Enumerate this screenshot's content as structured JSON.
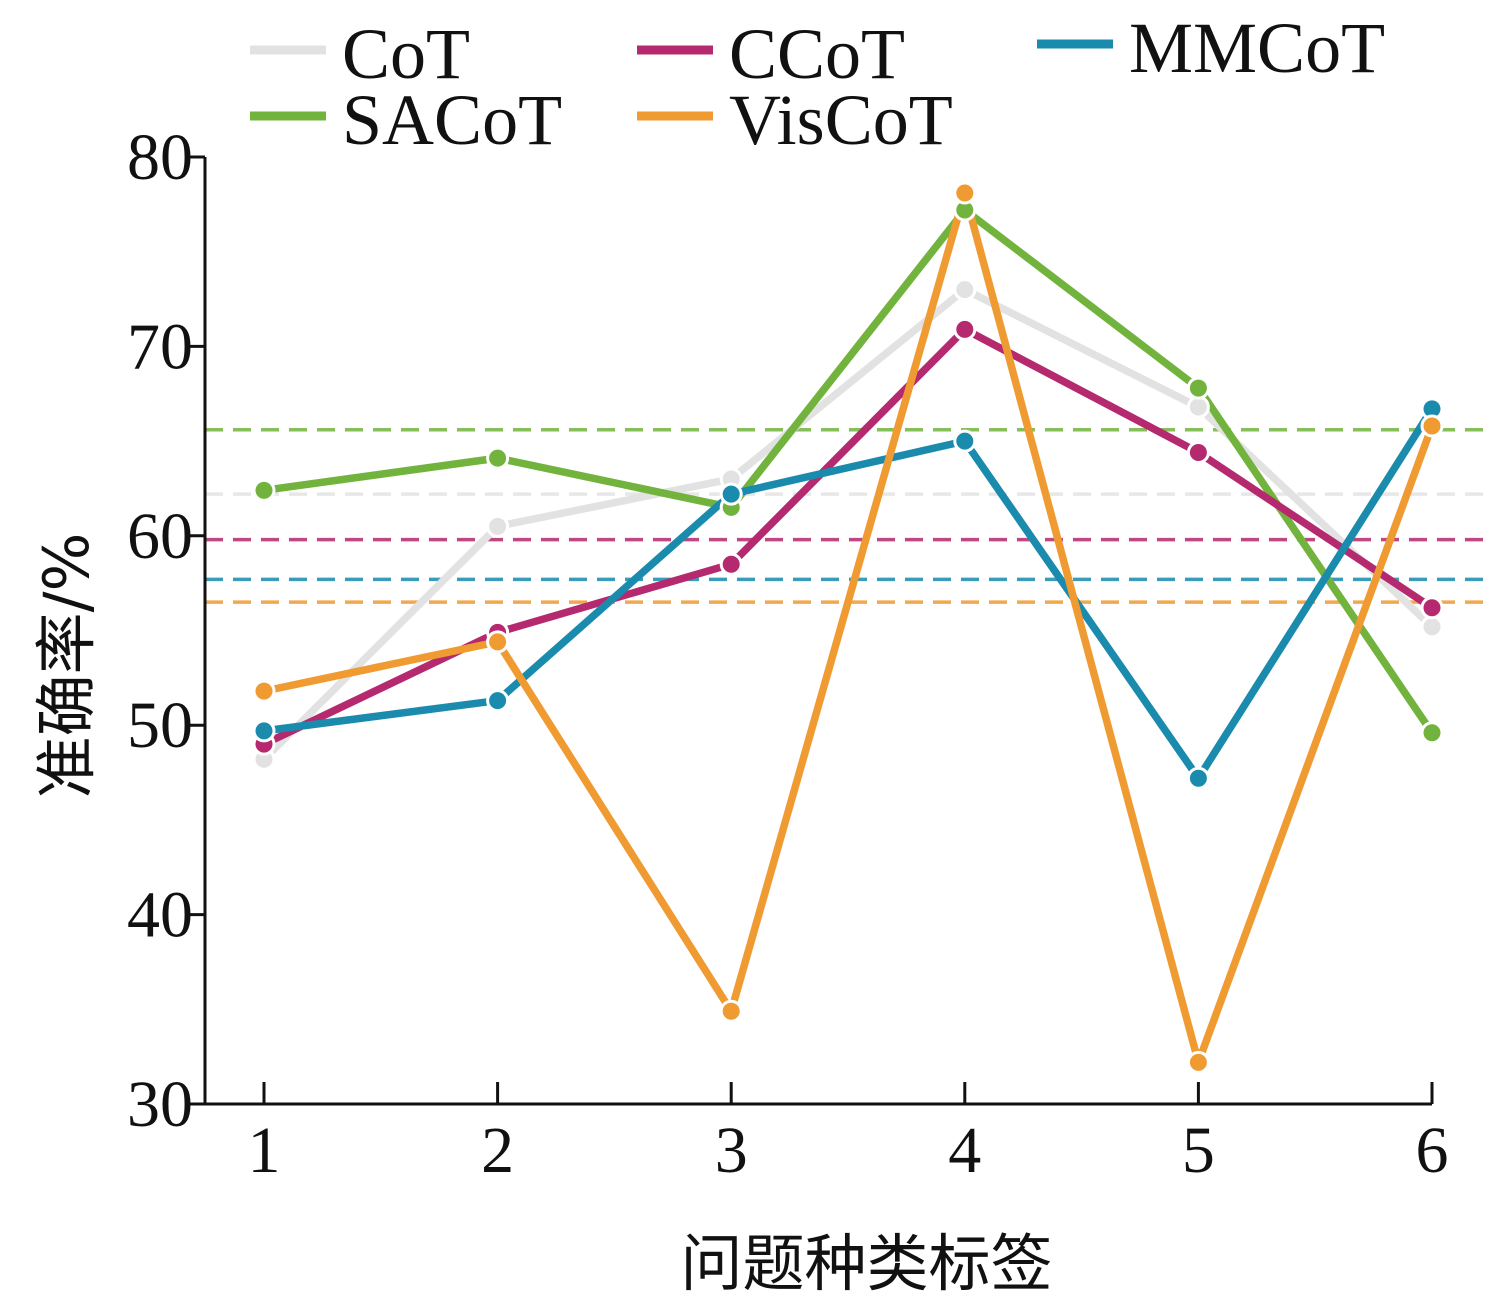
{
  "chart_data": {
    "type": "line",
    "title": "",
    "xlabel": "问题种类标签",
    "ylabel": "准确率/%",
    "categories": [
      "1",
      "2",
      "3",
      "4",
      "5",
      "6"
    ],
    "x": [
      1,
      2,
      3,
      4,
      5,
      6
    ],
    "xlim": [
      0.75,
      6
    ],
    "ylim": [
      30,
      80
    ],
    "yticks": [
      30,
      40,
      50,
      60,
      70,
      80
    ],
    "yticklabels": [
      "30",
      "40",
      "50",
      "60",
      "70",
      "80"
    ],
    "xticks": [
      1,
      2,
      3,
      4,
      5,
      6
    ],
    "xticklabels": [
      "1",
      "2",
      "3",
      "4",
      "5",
      "6"
    ],
    "grid": false,
    "legend_position": "top",
    "series": [
      {
        "name": "CoT",
        "color": "#e2e2e2",
        "values": [
          48.2,
          60.5,
          63.0,
          73.0,
          66.8,
          55.2
        ],
        "mean": 62.2
      },
      {
        "name": "SACoT",
        "color": "#72b33d",
        "values": [
          62.4,
          64.1,
          61.5,
          77.2,
          67.8,
          49.6
        ],
        "mean": 65.6
      },
      {
        "name": "CCoT",
        "color": "#b5296f",
        "values": [
          49.0,
          54.9,
          58.5,
          70.9,
          64.4,
          56.2
        ],
        "mean": 59.8
      },
      {
        "name": "VisCoT",
        "color": "#f09a32",
        "values": [
          51.8,
          54.4,
          34.9,
          78.1,
          32.2,
          65.8
        ],
        "mean": 56.5
      },
      {
        "name": "MMCoT",
        "color": "#1a8bad",
        "values": [
          49.7,
          51.3,
          62.2,
          65.0,
          47.2,
          66.7
        ],
        "mean": 57.7
      }
    ],
    "mean_line_style": "dashed",
    "mean_line_series": [
      "CoT",
      "SACoT",
      "CCoT",
      "VisCoT",
      "MMCoT"
    ]
  }
}
